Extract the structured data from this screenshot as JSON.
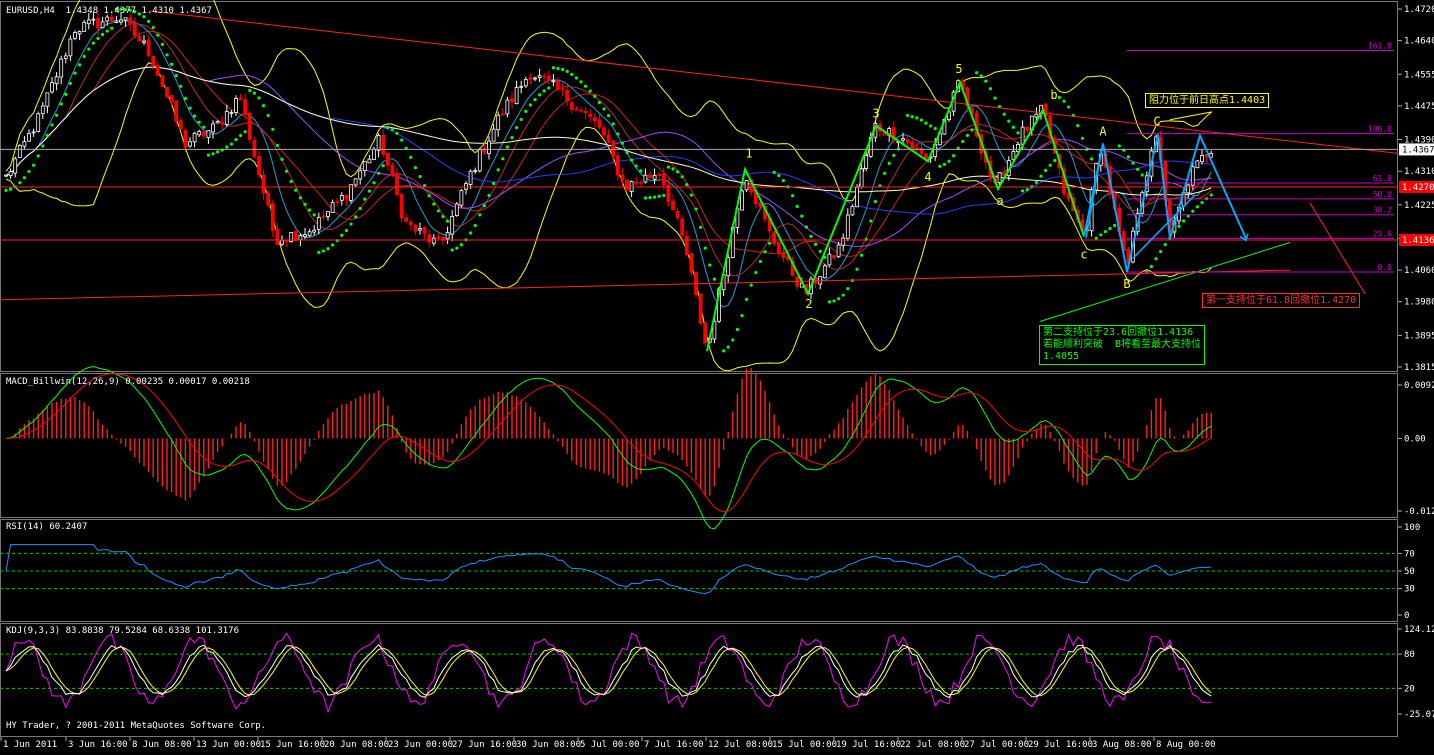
{
  "window": {
    "main_header": "EURUSD,H4  1.4348 1.4377 1.4310 1.4367",
    "copyright": "HY Trader, ? 2001-2011 MetaQuotes Software Corp."
  },
  "price_axis": {
    "ticks": [
      "1.4720",
      "1.4640",
      "1.4555",
      "1.4475",
      "1.4390",
      "1.4310",
      "1.4225",
      "1.4140",
      "1.4060",
      "1.3980",
      "1.3895",
      "1.3815"
    ],
    "current": "1.4367",
    "level_red_1": "1.4270",
    "level_red_2": "1.4136"
  },
  "fib": [
    "161.8",
    "100.0",
    "61.8",
    "50.0",
    "38.2",
    "23.6",
    "0.0"
  ],
  "wave_labels": [
    "1",
    "2",
    "3",
    "4",
    "5",
    "a",
    "b",
    "c",
    "A",
    "B",
    "C"
  ],
  "annotations": {
    "resistance": "阻力位于前日高点1.4403",
    "support1": "第一支持位于61.8回撤位1.4270",
    "support2_l1": "第二支持位于23.6回撤位1.4136",
    "support2_l2": "若能顺利突破  B将看至最大支持位",
    "support2_l3": "1.4055"
  },
  "macd": {
    "header": "MACD_Billwin(12,26,9) 0.00235 0.00017 0.00218",
    "ticks": [
      "0.00928",
      "0.00",
      "-0.01261"
    ]
  },
  "rsi": {
    "header": "RSI(14) 60.2407",
    "ticks": [
      "100",
      "70",
      "50",
      "30",
      "0"
    ]
  },
  "kdj": {
    "header": "KDJ(9,3,3) 83.8838 79.5284 68.6338 101.3176",
    "ticks": [
      "124.1249",
      "80",
      "20",
      "-25.0717"
    ]
  },
  "time_axis": [
    "1 Jun 2011",
    "3 Jun 16:00",
    "8 Jun 08:00",
    "13 Jun 00:00",
    "15 Jun 16:00",
    "20 Jun 08:00",
    "23 Jun 00:00",
    "27 Jun 16:00",
    "30 Jun 08:00",
    "5 Jul 00:00",
    "7 Jul 16:00",
    "12 Jul 08:00",
    "15 Jul 00:00",
    "19 Jul 16:00",
    "22 Jul 08:00",
    "27 Jul 00:00",
    "29 Jul 16:00",
    "3 Aug 08:00",
    "8 Aug 00:00"
  ],
  "colors": {
    "bull": "#ffffff",
    "bear": "#ff0000",
    "bollinger": "#ffff00",
    "sar": "#00ff00",
    "wave": "#00ff00",
    "projection": "#00aaff",
    "macd_line": "#00ff00",
    "signal_line": "#ff0000",
    "rsi": "#1e90ff",
    "kdj_k": "#ffffff",
    "kdj_d": "#ffff00",
    "kdj_j": "#ff00ff"
  },
  "chart_data": {
    "type": "candlestick",
    "symbol": "EURUSD",
    "timeframe": "H4",
    "ohlc": {
      "open": 1.4348,
      "high": 1.4377,
      "low": 1.431,
      "close": 1.4367
    },
    "ylim": [
      1.3815,
      1.472
    ],
    "wave_points": [
      {
        "label": "1",
        "x": "12 Jul 08:00",
        "price": 1.4315
      },
      {
        "label": "2",
        "x": "15 Jul 00:00",
        "price": 1.4
      },
      {
        "label": "3",
        "x": "19 Jul 16:00",
        "price": 1.4425
      },
      {
        "label": "4",
        "x": "22 Jul 08:00",
        "price": 1.4335
      },
      {
        "label": "5",
        "x": "27 Jul 00:00",
        "price": 1.4535
      },
      {
        "label": "a",
        "x": "27 Jul 00:00",
        "price": 1.4265
      },
      {
        "label": "b",
        "x": "29 Jul 16:00",
        "price": 1.4465
      },
      {
        "label": "c",
        "x": "3 Aug 08:00",
        "price": 1.4145
      }
    ],
    "levels": {
      "resistance": 1.4403,
      "support_61_8": 1.427,
      "support_23_6": 1.4136,
      "max_support": 1.4055
    },
    "indicators": {
      "macd": {
        "main": 0.00235,
        "signal": 0.00017,
        "hist": 0.00218,
        "ylim": [
          -0.01261,
          0.00928
        ]
      },
      "rsi": {
        "value": 60.2407,
        "levels": [
          30,
          50,
          70
        ],
        "ylim": [
          0,
          100
        ]
      },
      "kdj": {
        "k": 83.8838,
        "d": 79.5284,
        "j": 68.6338,
        "extra": 101.3176,
        "levels": [
          20,
          80
        ],
        "ylim": [
          -25.0717,
          124.1249
        ]
      }
    }
  }
}
